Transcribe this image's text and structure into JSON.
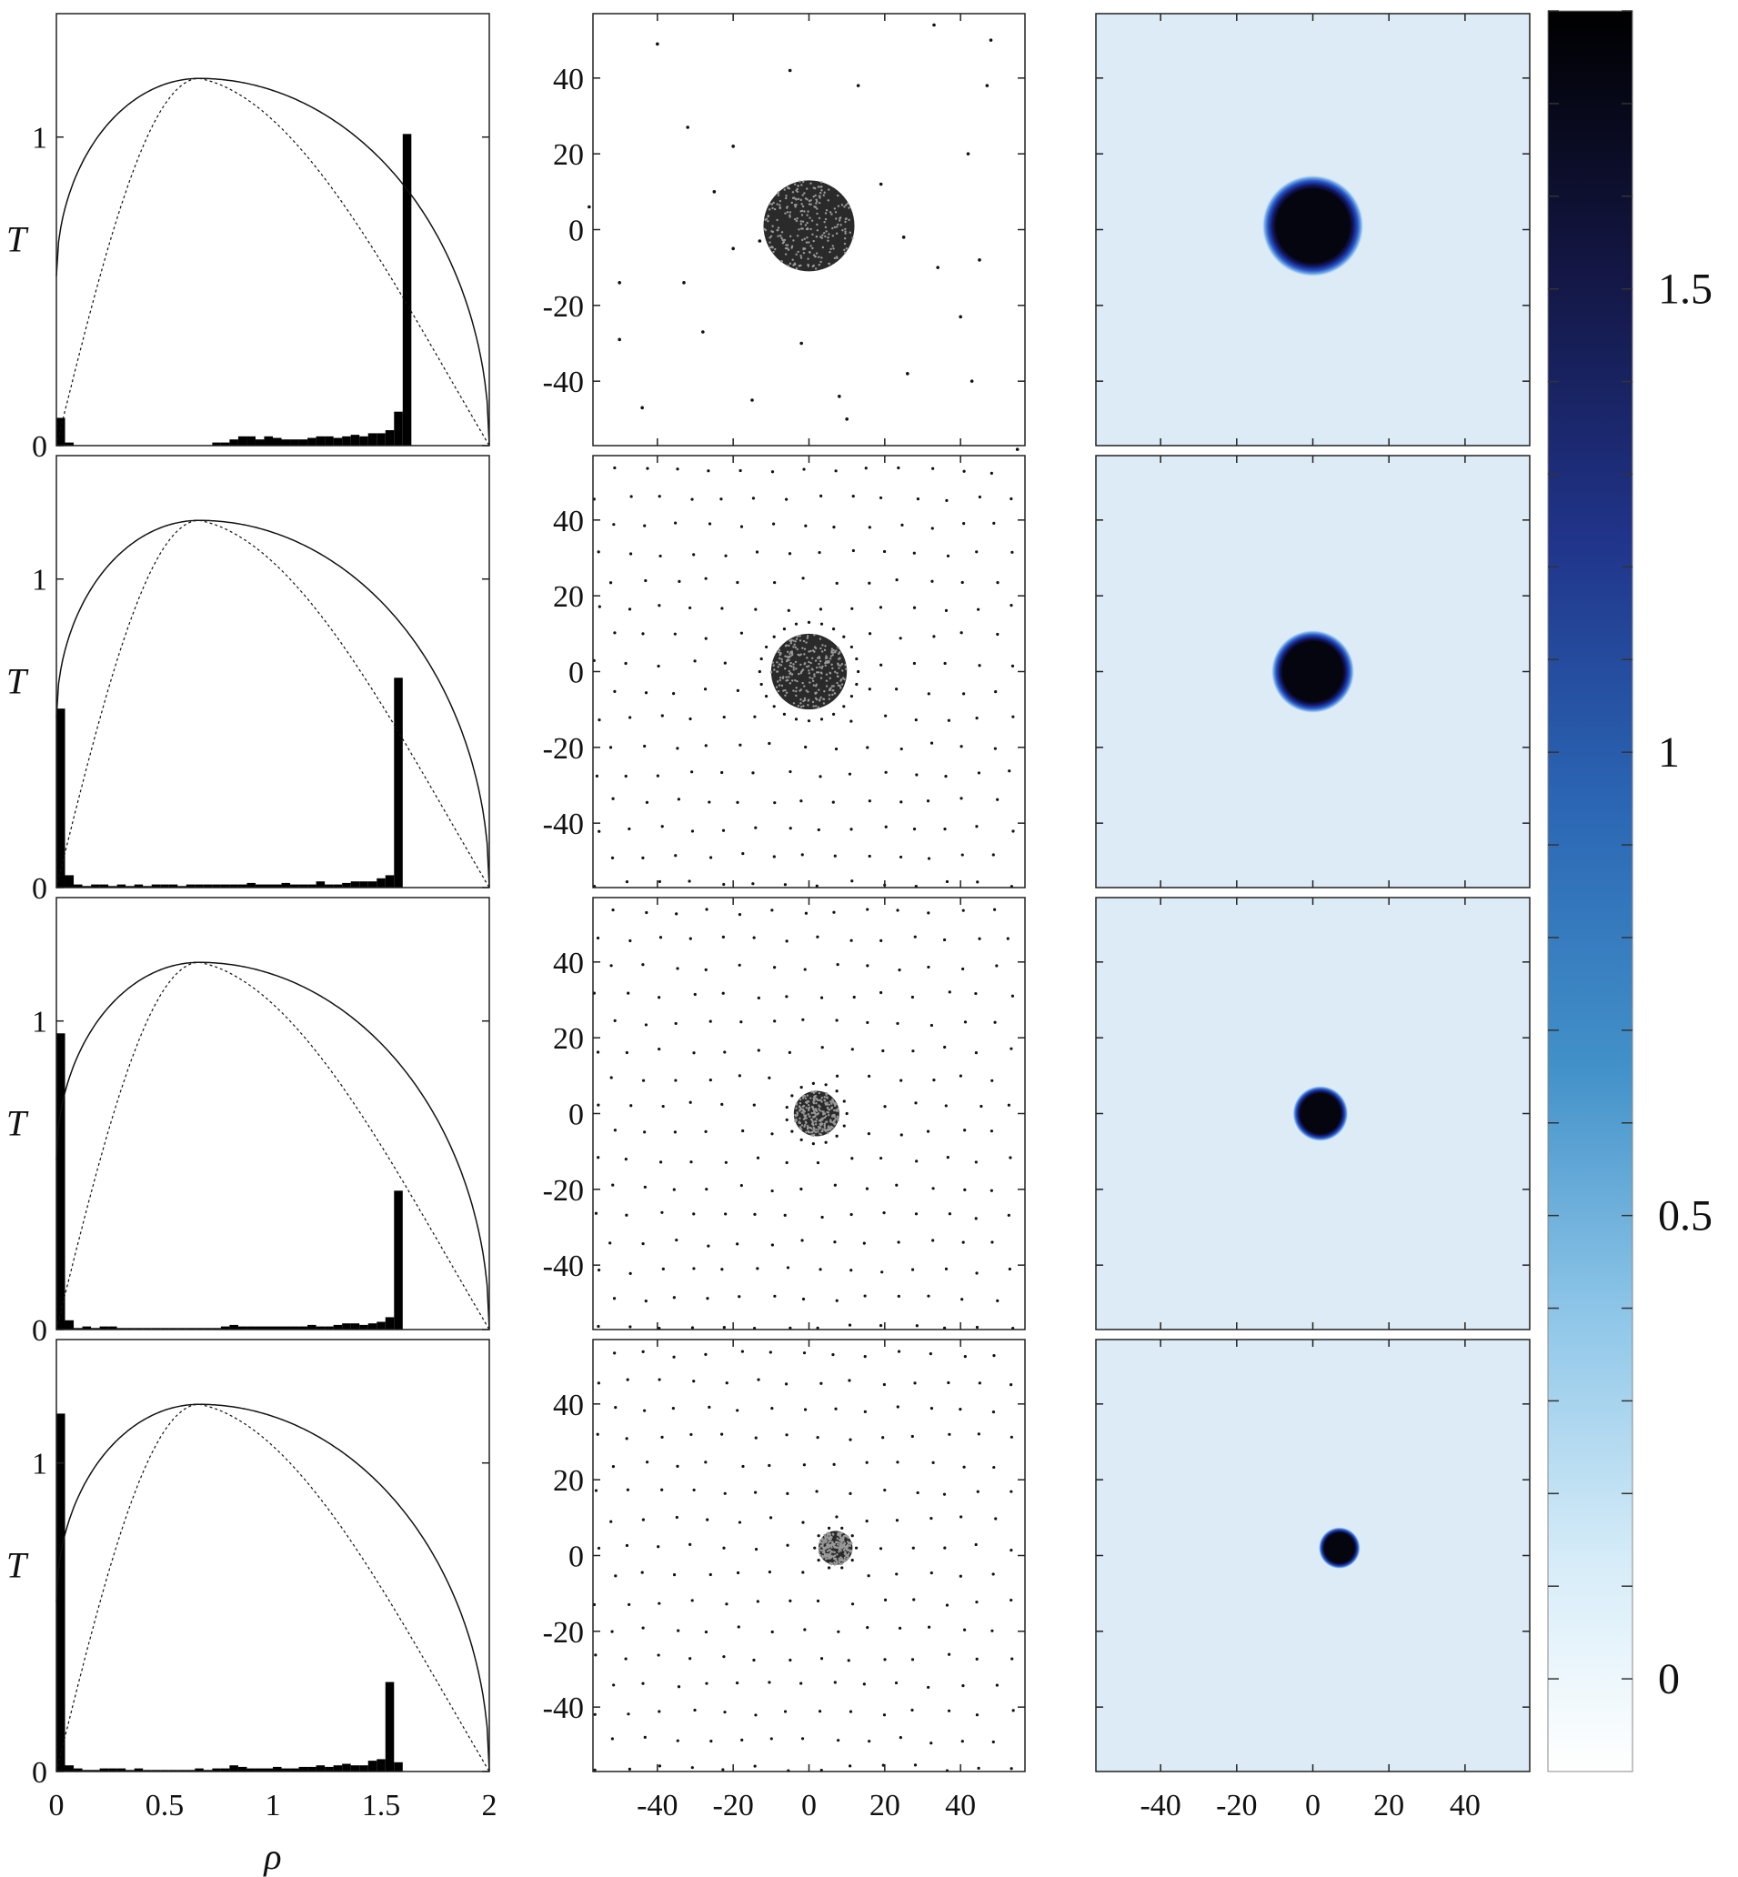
{
  "figure": {
    "colors": {
      "frame": "#222222",
      "bar": "#000000",
      "points": "#111111",
      "map_background": "#dcebf6",
      "blob": "#050510"
    }
  },
  "chart_data": [
    {
      "type": "bar",
      "panel": "histogram",
      "row": 1,
      "xlabel": "",
      "ylabel": "T",
      "xlim": [
        0,
        2
      ],
      "ylim": [
        0,
        1.4
      ],
      "xticks": [
        0,
        0.5,
        1,
        1.5,
        2
      ],
      "yticks": [
        0,
        1
      ],
      "bin_width": 0.04,
      "bins_x": [
        0.02,
        0.06,
        0.1,
        0.14,
        0.18,
        0.22,
        0.26,
        0.3,
        0.34,
        0.38,
        0.42,
        0.46,
        0.5,
        0.54,
        0.58,
        0.62,
        0.66,
        0.7,
        0.74,
        0.78,
        0.82,
        0.86,
        0.9,
        0.94,
        0.98,
        1.02,
        1.06,
        1.1,
        1.14,
        1.18,
        1.22,
        1.26,
        1.3,
        1.34,
        1.38,
        1.42,
        1.46,
        1.5,
        1.54,
        1.58,
        1.62,
        1.66,
        1.7,
        1.74,
        1.78,
        1.82,
        1.86,
        1.9,
        1.94,
        1.98
      ],
      "values": [
        0.09,
        0.01,
        0,
        0,
        0,
        0,
        0,
        0,
        0,
        0,
        0,
        0,
        0,
        0,
        0,
        0,
        0,
        0,
        0.01,
        0.01,
        0.02,
        0.03,
        0.03,
        0.02,
        0.03,
        0.025,
        0.02,
        0.02,
        0.02,
        0.025,
        0.03,
        0.03,
        0.025,
        0.03,
        0.035,
        0.03,
        0.04,
        0.04,
        0.05,
        0.11,
        1.01,
        0,
        0,
        0,
        0,
        0,
        0,
        0,
        0,
        0
      ],
      "curves": [
        {
          "name": "",
          "style": "solid",
          "peak_x": 0.66,
          "peak_y": 1.19
        },
        {
          "name": "",
          "style": "dashed",
          "peak_x": 0.66,
          "peak_y": 1.19
        }
      ]
    },
    {
      "type": "scatter",
      "panel": "particles",
      "row": 1,
      "xlim": [
        -57,
        57
      ],
      "ylim": [
        -57,
        57
      ],
      "xticks": [
        -40,
        -20,
        0,
        20,
        40
      ],
      "yticks": [
        -40,
        -20,
        0,
        20,
        40
      ],
      "cluster": {
        "center": [
          0,
          1
        ],
        "radius": 12
      },
      "scattered_points": [
        [
          -40,
          49
        ],
        [
          -5,
          42
        ],
        [
          13,
          38
        ],
        [
          33,
          54
        ],
        [
          48,
          50
        ],
        [
          47,
          38
        ],
        [
          -32,
          27
        ],
        [
          -20,
          22
        ],
        [
          42,
          20
        ],
        [
          -58,
          6
        ],
        [
          -50,
          -14
        ],
        [
          -33,
          -14
        ],
        [
          -13,
          -3
        ],
        [
          25,
          -2
        ],
        [
          45,
          -8
        ],
        [
          40,
          -23
        ],
        [
          -50,
          -29
        ],
        [
          -28,
          -27
        ],
        [
          -2,
          -30
        ],
        [
          8,
          -44
        ],
        [
          26,
          -38
        ],
        [
          43,
          -40
        ],
        [
          -44,
          -47
        ],
        [
          -15,
          -45
        ],
        [
          10,
          -50
        ],
        [
          19,
          12
        ],
        [
          -20,
          -5
        ],
        [
          -25,
          10
        ],
        [
          34,
          -10
        ],
        [
          55,
          -58
        ]
      ]
    },
    {
      "type": "heatmap",
      "panel": "density",
      "row": 1,
      "xlim": [
        -57,
        57
      ],
      "ylim": [
        -57,
        57
      ],
      "xticks": [
        -40,
        -20,
        0,
        20,
        40
      ],
      "yticks": [
        -40,
        -20,
        0,
        20,
        40
      ],
      "blob": {
        "center": [
          0,
          1
        ],
        "radius": 11,
        "peak": 1.75
      }
    },
    {
      "type": "bar",
      "panel": "histogram",
      "row": 2,
      "xlabel": "",
      "ylabel": "T",
      "xlim": [
        0,
        2
      ],
      "ylim": [
        0,
        1.4
      ],
      "xticks": [
        0,
        0.5,
        1,
        1.5,
        2
      ],
      "yticks": [
        0,
        1
      ],
      "bin_width": 0.04,
      "bins_x": [
        0.02,
        0.06,
        0.1,
        0.14,
        0.18,
        0.22,
        0.26,
        0.3,
        0.34,
        0.38,
        0.42,
        0.46,
        0.5,
        0.54,
        0.58,
        0.62,
        0.66,
        0.7,
        0.74,
        0.78,
        0.82,
        0.86,
        0.9,
        0.94,
        0.98,
        1.02,
        1.06,
        1.1,
        1.14,
        1.18,
        1.22,
        1.26,
        1.3,
        1.34,
        1.38,
        1.42,
        1.46,
        1.5,
        1.54,
        1.58,
        1.62,
        1.66,
        1.7,
        1.74,
        1.78,
        1.82,
        1.86,
        1.9,
        1.94,
        1.98
      ],
      "values": [
        0.58,
        0.04,
        0.01,
        0.005,
        0.01,
        0.01,
        0.005,
        0.01,
        0.005,
        0.01,
        0.005,
        0.01,
        0.01,
        0.01,
        0.005,
        0.01,
        0.01,
        0.01,
        0.01,
        0.01,
        0.01,
        0.01,
        0.015,
        0.01,
        0.01,
        0.01,
        0.015,
        0.01,
        0.01,
        0.01,
        0.02,
        0.01,
        0.01,
        0.015,
        0.02,
        0.02,
        0.02,
        0.03,
        0.04,
        0.68,
        0,
        0,
        0,
        0,
        0,
        0,
        0,
        0,
        0,
        0
      ],
      "curves": [
        {
          "name": "",
          "style": "solid",
          "peak_x": 0.66,
          "peak_y": 1.19
        },
        {
          "name": "",
          "style": "dashed",
          "peak_x": 0.66,
          "peak_y": 1.19
        }
      ]
    },
    {
      "type": "scatter",
      "panel": "particles",
      "row": 2,
      "xlim": [
        -57,
        57
      ],
      "ylim": [
        -57,
        57
      ],
      "xticks": [
        -40,
        -20,
        0,
        20,
        40
      ],
      "yticks": [
        -40,
        -20,
        0,
        20,
        40
      ],
      "cluster": {
        "center": [
          0,
          0
        ],
        "radius": 10,
        "ring_radius": 13
      },
      "lattice_spacing": 8.4
    },
    {
      "type": "heatmap",
      "panel": "density",
      "row": 2,
      "xlim": [
        -57,
        57
      ],
      "ylim": [
        -57,
        57
      ],
      "xticks": [
        -40,
        -20,
        0,
        20,
        40
      ],
      "yticks": [
        -40,
        -20,
        0,
        20,
        40
      ],
      "blob": {
        "center": [
          0,
          0
        ],
        "radius": 9,
        "peak": 1.75
      }
    },
    {
      "type": "bar",
      "panel": "histogram",
      "row": 3,
      "xlabel": "",
      "ylabel": "T",
      "xlim": [
        0,
        2
      ],
      "ylim": [
        0,
        1.4
      ],
      "xticks": [
        0,
        0.5,
        1,
        1.5,
        2
      ],
      "yticks": [
        0,
        1
      ],
      "bin_width": 0.04,
      "bins_x": [
        0.02,
        0.06,
        0.1,
        0.14,
        0.18,
        0.22,
        0.26,
        0.3,
        0.34,
        0.38,
        0.42,
        0.46,
        0.5,
        0.54,
        0.58,
        0.62,
        0.66,
        0.7,
        0.74,
        0.78,
        0.82,
        0.86,
        0.9,
        0.94,
        0.98,
        1.02,
        1.06,
        1.1,
        1.14,
        1.18,
        1.22,
        1.26,
        1.3,
        1.34,
        1.38,
        1.42,
        1.46,
        1.5,
        1.54,
        1.58,
        1.62,
        1.66,
        1.7,
        1.74,
        1.78,
        1.82,
        1.86,
        1.9,
        1.94,
        1.98
      ],
      "values": [
        0.96,
        0.03,
        0.005,
        0.01,
        0.005,
        0.01,
        0.01,
        0.005,
        0.005,
        0.005,
        0.005,
        0.005,
        0.005,
        0.005,
        0.005,
        0.005,
        0.005,
        0.005,
        0.005,
        0.01,
        0.015,
        0.01,
        0.01,
        0.01,
        0.01,
        0.01,
        0.01,
        0.01,
        0.01,
        0.015,
        0.01,
        0.01,
        0.015,
        0.02,
        0.02,
        0.015,
        0.02,
        0.025,
        0.04,
        0.45,
        0,
        0,
        0,
        0,
        0,
        0,
        0,
        0,
        0,
        0
      ],
      "curves": [
        {
          "name": "",
          "style": "solid",
          "peak_x": 0.66,
          "peak_y": 1.19
        },
        {
          "name": "",
          "style": "dashed",
          "peak_x": 0.66,
          "peak_y": 1.19
        }
      ]
    },
    {
      "type": "scatter",
      "panel": "particles",
      "row": 3,
      "xlim": [
        -57,
        57
      ],
      "ylim": [
        -57,
        57
      ],
      "xticks": [
        -40,
        -20,
        0,
        20,
        40
      ],
      "yticks": [
        -40,
        -20,
        0,
        20,
        40
      ],
      "cluster": {
        "center": [
          2,
          0
        ],
        "radius": 6,
        "ring_radius": 8
      },
      "lattice_spacing": 8.4
    },
    {
      "type": "heatmap",
      "panel": "density",
      "row": 3,
      "xlim": [
        -57,
        57
      ],
      "ylim": [
        -57,
        57
      ],
      "xticks": [
        -40,
        -20,
        0,
        20,
        40
      ],
      "yticks": [
        -40,
        -20,
        0,
        20,
        40
      ],
      "blob": {
        "center": [
          2,
          0
        ],
        "radius": 6,
        "peak": 1.75
      }
    },
    {
      "type": "bar",
      "panel": "histogram",
      "row": 4,
      "xlabel": "ρ",
      "ylabel": "T",
      "xlim": [
        0,
        2
      ],
      "ylim": [
        0,
        1.4
      ],
      "xticks": [
        0,
        0.5,
        1,
        1.5,
        2
      ],
      "yticks": [
        0,
        1
      ],
      "bin_width": 0.04,
      "bins_x": [
        0.02,
        0.06,
        0.1,
        0.14,
        0.18,
        0.22,
        0.26,
        0.3,
        0.34,
        0.38,
        0.42,
        0.46,
        0.5,
        0.54,
        0.58,
        0.62,
        0.66,
        0.7,
        0.74,
        0.78,
        0.82,
        0.86,
        0.9,
        0.94,
        0.98,
        1.02,
        1.06,
        1.1,
        1.14,
        1.18,
        1.22,
        1.26,
        1.3,
        1.34,
        1.38,
        1.42,
        1.46,
        1.5,
        1.54,
        1.58,
        1.62,
        1.66,
        1.7,
        1.74,
        1.78,
        1.82,
        1.86,
        1.9,
        1.94,
        1.98
      ],
      "values": [
        1.16,
        0.02,
        0.01,
        0.005,
        0.005,
        0.01,
        0.01,
        0.01,
        0.005,
        0.01,
        0.005,
        0.005,
        0.005,
        0.005,
        0.005,
        0.005,
        0.01,
        0.005,
        0.01,
        0.01,
        0.02,
        0.015,
        0.01,
        0.01,
        0.01,
        0.015,
        0.01,
        0.01,
        0.015,
        0.015,
        0.02,
        0.015,
        0.02,
        0.025,
        0.02,
        0.02,
        0.035,
        0.04,
        0.29,
        0.03,
        0,
        0,
        0,
        0,
        0,
        0,
        0,
        0,
        0,
        0
      ],
      "curves": [
        {
          "name": "",
          "style": "solid",
          "peak_x": 0.66,
          "peak_y": 1.19
        },
        {
          "name": "",
          "style": "dashed",
          "peak_x": 0.66,
          "peak_y": 1.19
        }
      ]
    },
    {
      "type": "scatter",
      "panel": "particles",
      "row": 4,
      "xlim": [
        -57,
        57
      ],
      "ylim": [
        -57,
        57
      ],
      "xticks": [
        -40,
        -20,
        0,
        20,
        40
      ],
      "yticks": [
        -40,
        -20,
        0,
        20,
        40
      ],
      "cluster": {
        "center": [
          7,
          2
        ],
        "radius": 4.5,
        "ring_radius": 5.5
      },
      "lattice_spacing": 8.4
    },
    {
      "type": "heatmap",
      "panel": "density",
      "row": 4,
      "xlim": [
        -57,
        57
      ],
      "ylim": [
        -57,
        57
      ],
      "xticks": [
        -40,
        -20,
        0,
        20,
        40
      ],
      "yticks": [
        -40,
        -20,
        0,
        20,
        40
      ],
      "blob": {
        "center": [
          7,
          2
        ],
        "radius": 4.5,
        "peak": 1.75
      }
    },
    {
      "type": "heatmap",
      "panel": "colorbar",
      "range": [
        -0.1,
        1.8
      ],
      "ticks": [
        0,
        0.5,
        1,
        1.5
      ],
      "tick_labels": [
        "0",
        "0.5",
        "1",
        "1.5"
      ],
      "colors": [
        "#ffffff",
        "#b5dcf2",
        "#4291c9",
        "#2059a8",
        "#1f2466",
        "#000000"
      ]
    }
  ]
}
